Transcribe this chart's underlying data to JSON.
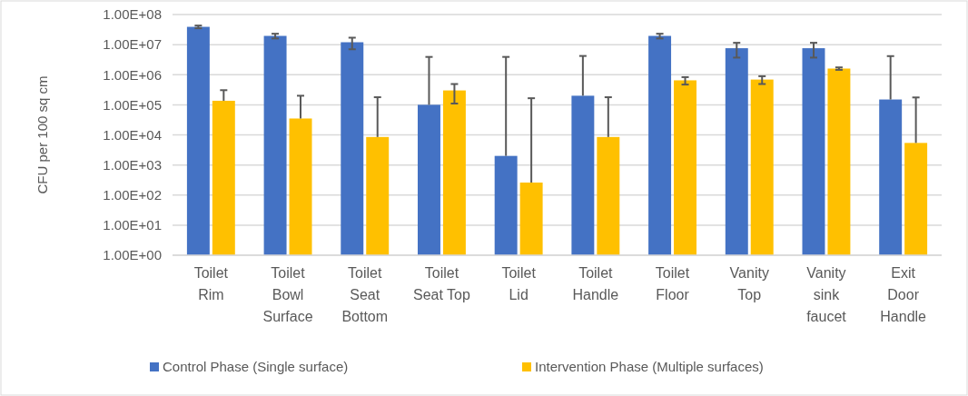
{
  "chart_data": {
    "type": "bar",
    "ylabel": "CFU per 100 sq cm",
    "log": "y",
    "categories": [
      "Toilet Rim",
      "Toilet Bowl Surface",
      "Toilet Seat Bottom",
      "Toilet Seat Top",
      "Toilet Lid",
      "Toilet Handle",
      "Toilet Floor",
      "Vanity Top",
      "Vanity sink faucet",
      "Exit Door Handle"
    ],
    "series": [
      {
        "name": "Control Phase (Single surface)",
        "color": "#4472c4",
        "values": [
          39000000,
          19500000,
          12000000,
          100000,
          2000,
          200000,
          19500000,
          7600000,
          7600000,
          150000
        ],
        "errors": [
          4000000,
          3500000,
          5000000,
          3800000,
          3900000,
          4000000,
          3500000,
          3900000,
          3900000,
          4000000
        ]
      },
      {
        "name": "Intervention Phase (Multiple  surfaces)",
        "color": "#ffc000",
        "values": [
          136000,
          35000,
          8500,
          300000,
          260,
          8500,
          650000,
          690000,
          1600000,
          5400
        ],
        "errors": [
          170000,
          165000,
          170000,
          190000,
          165000,
          170000,
          180000,
          200000,
          150000,
          170000
        ]
      }
    ],
    "ylim": [
      1,
      100000000
    ],
    "yticks": [
      {
        "value": 1,
        "label": "1.00E+00"
      },
      {
        "value": 10,
        "label": "1.00E+01"
      },
      {
        "value": 100,
        "label": "1.00E+02"
      },
      {
        "value": 1000,
        "label": "1.00E+03"
      },
      {
        "value": 10000,
        "label": "1.00E+04"
      },
      {
        "value": 100000,
        "label": "1.00E+05"
      },
      {
        "value": 1000000,
        "label": "1.00E+06"
      },
      {
        "value": 10000000,
        "label": "1.00E+07"
      },
      {
        "value": 100000000,
        "label": "1.00E+08"
      }
    ],
    "grid": "y",
    "legend": "bottom"
  }
}
